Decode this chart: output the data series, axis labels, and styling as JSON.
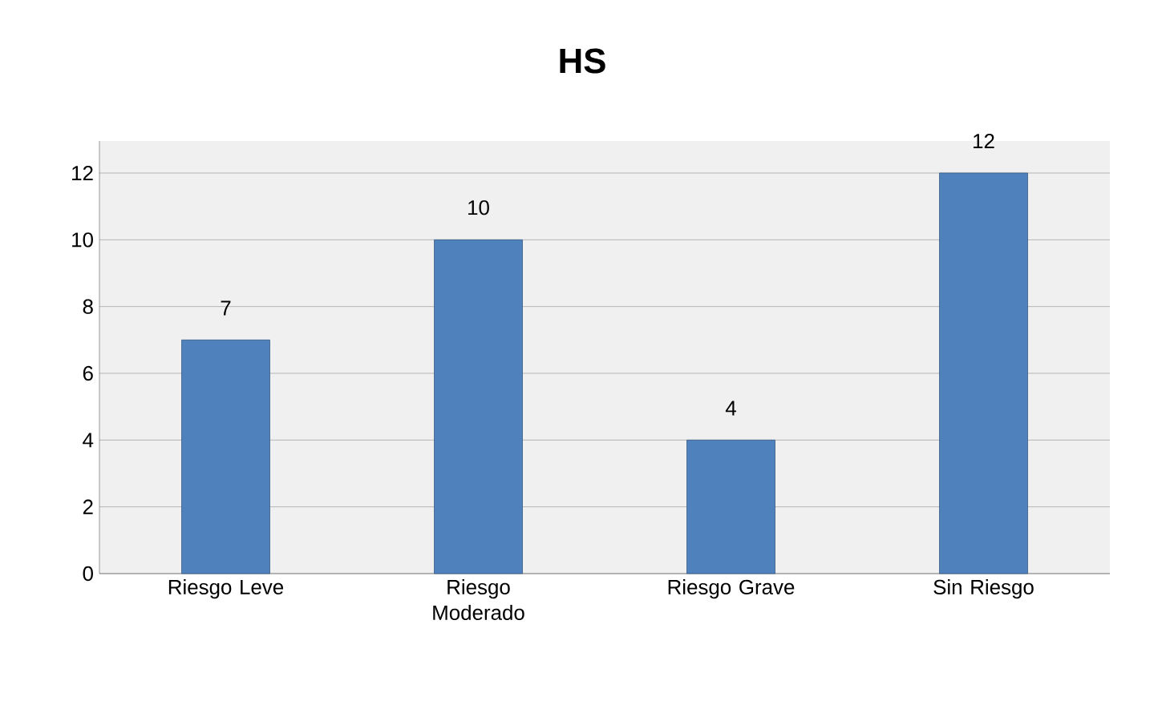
{
  "chart_data": {
    "type": "bar",
    "title": "HS",
    "categories": [
      "Riesgo Leve",
      "Riesgo Moderado",
      "Riesgo Grave",
      "Sin Riesgo"
    ],
    "values": [
      7,
      10,
      4,
      12
    ],
    "color": "#4f81bd",
    "ylim": [
      0,
      12
    ],
    "yticks": [
      0,
      2,
      4,
      6,
      8,
      10,
      12
    ],
    "grid": "y",
    "data_labels": true
  }
}
